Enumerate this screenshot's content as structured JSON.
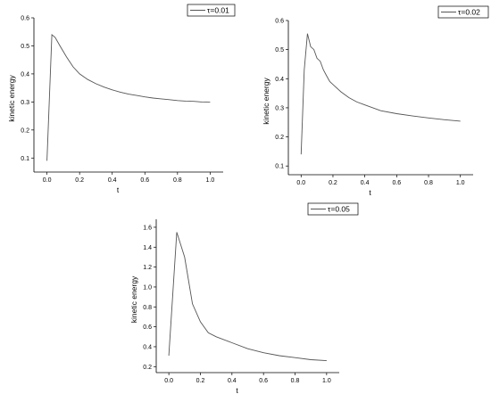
{
  "chart_data": [
    {
      "type": "line",
      "xlabel": "t",
      "ylabel": "kinetic energy",
      "xlim": [
        -0.08,
        1.08
      ],
      "ylim": [
        0.05,
        0.6
      ],
      "xticks": [
        0.0,
        0.2,
        0.4,
        0.6,
        0.8,
        1.0
      ],
      "yticks": [
        0.1,
        0.2,
        0.3,
        0.4,
        0.5,
        0.6
      ],
      "xtick_labels": [
        "0.0",
        "0.2",
        "0.4",
        "0.6",
        "0.8",
        "1.0"
      ],
      "ytick_labels": [
        "0.1",
        "0.2",
        "0.3",
        "0.4",
        "0.5",
        "0.6"
      ],
      "legend": "top-right",
      "grid": false,
      "series": [
        {
          "name": "τ=0.01",
          "color": "#555555",
          "x": [
            0.0,
            0.03,
            0.05,
            0.08,
            0.12,
            0.16,
            0.2,
            0.25,
            0.3,
            0.35,
            0.4,
            0.45,
            0.5,
            0.55,
            0.6,
            0.65,
            0.7,
            0.75,
            0.8,
            0.85,
            0.9,
            0.95,
            1.0
          ],
          "y": [
            0.09,
            0.54,
            0.53,
            0.5,
            0.46,
            0.425,
            0.4,
            0.38,
            0.365,
            0.353,
            0.343,
            0.335,
            0.328,
            0.323,
            0.318,
            0.314,
            0.311,
            0.308,
            0.305,
            0.303,
            0.302,
            0.3,
            0.299
          ]
        }
      ]
    },
    {
      "type": "line",
      "xlabel": "t",
      "ylabel": "kinetic energy",
      "xlim": [
        -0.08,
        1.08
      ],
      "ylim": [
        0.07,
        0.6
      ],
      "xticks": [
        0.0,
        0.2,
        0.4,
        0.6,
        0.8,
        1.0
      ],
      "yticks": [
        0.1,
        0.2,
        0.3,
        0.4,
        0.5,
        0.6
      ],
      "xtick_labels": [
        "0.0",
        "0.2",
        "0.4",
        "0.6",
        "0.8",
        "1.0"
      ],
      "ytick_labels": [
        "0.1",
        "0.2",
        "0.3",
        "0.4",
        "0.5",
        "0.6"
      ],
      "legend": "top-right",
      "grid": false,
      "series": [
        {
          "name": "τ=0.02",
          "color": "#555555",
          "x": [
            0.0,
            0.02,
            0.04,
            0.06,
            0.08,
            0.1,
            0.12,
            0.14,
            0.16,
            0.18,
            0.2,
            0.25,
            0.3,
            0.35,
            0.4,
            0.5,
            0.6,
            0.7,
            0.8,
            0.9,
            1.0
          ],
          "y": [
            0.14,
            0.43,
            0.555,
            0.51,
            0.5,
            0.47,
            0.46,
            0.43,
            0.41,
            0.39,
            0.38,
            0.355,
            0.335,
            0.32,
            0.31,
            0.29,
            0.28,
            0.272,
            0.265,
            0.259,
            0.254
          ]
        }
      ]
    },
    {
      "type": "line",
      "xlabel": "t",
      "ylabel": "kinetic energy",
      "xlim": [
        -0.08,
        1.08
      ],
      "ylim": [
        0.14,
        1.68
      ],
      "xticks": [
        0.0,
        0.2,
        0.4,
        0.6,
        0.8,
        1.0
      ],
      "yticks": [
        0.2,
        0.4,
        0.6,
        0.8,
        1.0,
        1.2,
        1.4,
        1.6
      ],
      "xtick_labels": [
        "0.0",
        "0.2",
        "0.4",
        "0.6",
        "0.8",
        "1.0"
      ],
      "ytick_labels": [
        "0.2",
        "0.4",
        "0.6",
        "0.8",
        "1.0",
        "1.2",
        "1.4",
        "1.6"
      ],
      "legend": "top-right",
      "grid": false,
      "series": [
        {
          "name": "τ=0.05",
          "color": "#555555",
          "x": [
            0.0,
            0.05,
            0.1,
            0.15,
            0.2,
            0.25,
            0.3,
            0.4,
            0.5,
            0.6,
            0.7,
            0.8,
            0.9,
            1.0
          ],
          "y": [
            0.31,
            1.55,
            1.3,
            0.83,
            0.65,
            0.54,
            0.5,
            0.44,
            0.38,
            0.34,
            0.31,
            0.29,
            0.27,
            0.26
          ]
        }
      ]
    }
  ]
}
